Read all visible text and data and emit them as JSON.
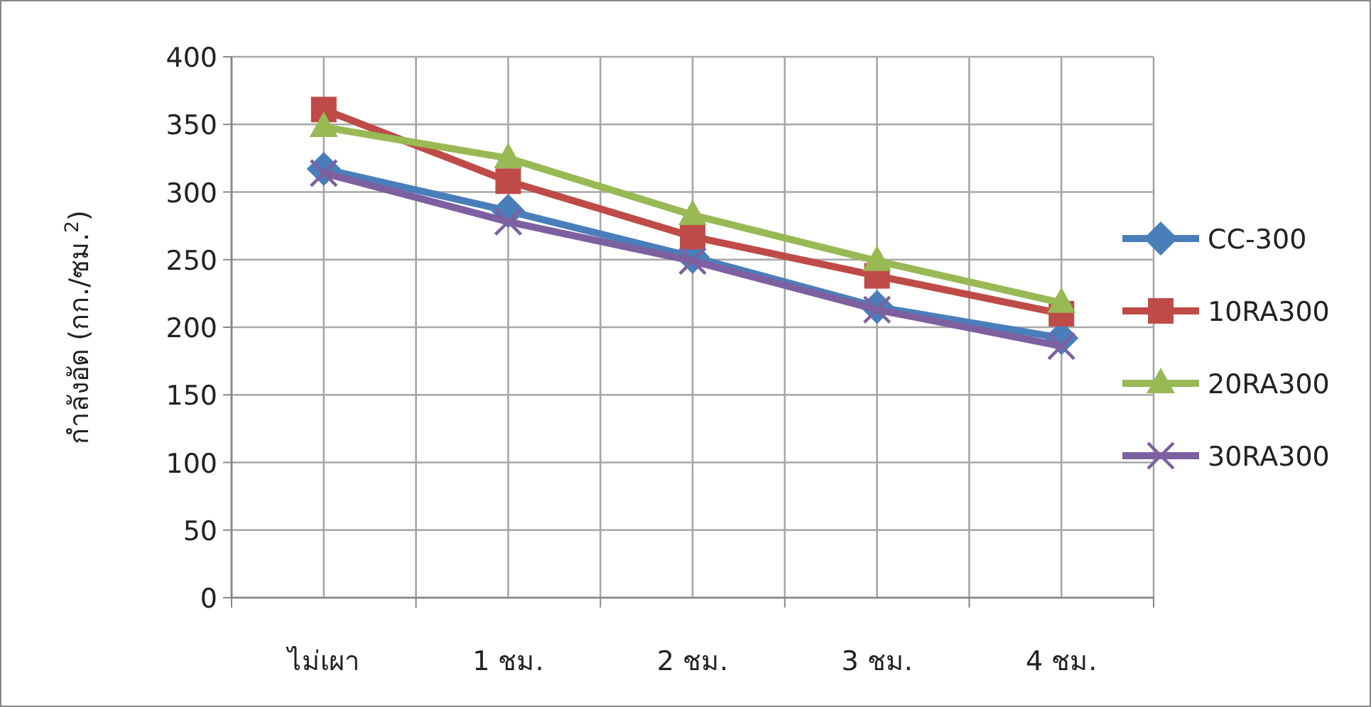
{
  "chart_data": {
    "type": "line",
    "ylabel": "กำลังอัด (กก./ซม.$^{2}$)",
    "categories": [
      "ไม่เผา",
      "1 ชม.",
      "2 ชม.",
      "3 ชม.",
      "4 ชม."
    ],
    "ylim": [
      0,
      400
    ],
    "yticks": [
      0,
      50,
      100,
      150,
      200,
      250,
      300,
      350,
      400
    ],
    "grid": true,
    "legend": "right",
    "line_style": "solid",
    "series": [
      {
        "name": "CC-300",
        "color": "#4a7ebb",
        "marker": "diamond",
        "values": [
          317,
          286,
          252,
          215,
          192
        ]
      },
      {
        "name": "10RA300",
        "color": "#be4b48",
        "marker": "square",
        "values": [
          361,
          308,
          267,
          238,
          210
        ]
      },
      {
        "name": "20RA300",
        "color": "#98b954",
        "marker": "triangle",
        "values": [
          348,
          325,
          283,
          249,
          218
        ]
      },
      {
        "name": "30RA300",
        "color": "#7d60a0",
        "marker": "cross",
        "values": [
          314,
          278,
          249,
          213,
          186
        ]
      }
    ]
  }
}
